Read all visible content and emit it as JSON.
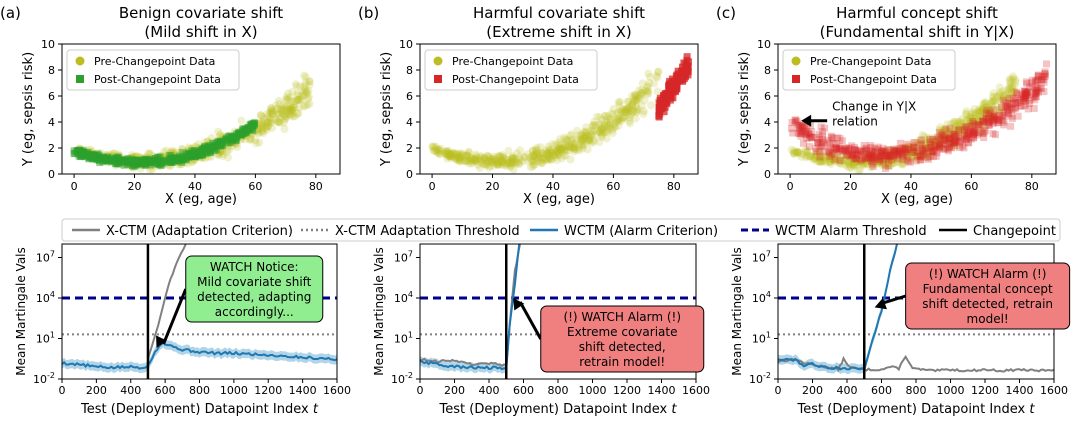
{
  "chart_data": [
    {
      "id": "a",
      "type": "scatter",
      "panel_label": "(a)",
      "title_line1": "Benign covariate shift",
      "title_line2": "(Mild shift in X)",
      "xlabel": "X (eg, age)",
      "ylabel": "Y (eg, sepsis risk)",
      "xlim": [
        -4,
        88
      ],
      "ylim": [
        0,
        10
      ],
      "xticks": [
        0,
        20,
        40,
        60,
        80
      ],
      "yticks": [
        0,
        2,
        4,
        6,
        8,
        10
      ],
      "legend_position": "upper-left",
      "series": [
        {
          "name": "Pre-Changepoint Data",
          "marker": "circle",
          "color": "#bcbd22",
          "x_range": [
            0,
            78
          ],
          "trend": "u-shape",
          "y_at_0": 2.0,
          "y_min": 1.0,
          "x_at_min": 22,
          "y_at_80": 6.3
        },
        {
          "name": "Post-Changepoint Data",
          "marker": "square",
          "color": "#2ca02c",
          "x_range": [
            0,
            60
          ],
          "trend": "u-shape",
          "y_at_0": 1.8,
          "y_min": 0.9,
          "x_at_min": 22,
          "y_at_60": 3.8
        }
      ],
      "annotation": null
    },
    {
      "id": "b",
      "type": "scatter",
      "panel_label": "(b)",
      "title_line1": "Harmful covariate shift",
      "title_line2": "(Extreme shift in X)",
      "xlabel": "X (eg, age)",
      "ylabel": "Y (eg, sepsis risk)",
      "xlim": [
        -4,
        88
      ],
      "ylim": [
        0,
        10
      ],
      "xticks": [
        0,
        20,
        40,
        60,
        80
      ],
      "yticks": [
        0,
        2,
        4,
        6,
        8,
        10
      ],
      "legend_position": "upper-left",
      "series": [
        {
          "name": "Pre-Changepoint Data",
          "marker": "circle",
          "color": "#bcbd22",
          "x_range": [
            0,
            75
          ],
          "trend": "u-shape",
          "y_at_0": 1.9,
          "y_min": 1.0,
          "x_at_min": 22,
          "y_at_75": 7.0
        },
        {
          "name": "Post-Changepoint Data",
          "marker": "square",
          "color": "#d62728",
          "x_range": [
            75,
            85
          ],
          "trend": "steep",
          "y_at_75": 5.0,
          "y_at_85": 8.5
        }
      ],
      "annotation": null
    },
    {
      "id": "c",
      "type": "scatter",
      "panel_label": "(c)",
      "title_line1": "Harmful concept shift",
      "title_line2": "(Fundamental shift in Y|X)",
      "xlabel": "X (eg, age)",
      "ylabel": "Y (eg, sepsis risk)",
      "xlim": [
        -4,
        88
      ],
      "ylim": [
        0,
        10
      ],
      "xticks": [
        0,
        20,
        40,
        60,
        80
      ],
      "yticks": [
        0,
        2,
        4,
        6,
        8,
        10
      ],
      "legend_position": "upper-left",
      "series": [
        {
          "name": "Pre-Changepoint Data",
          "marker": "circle",
          "color": "#bcbd22",
          "x_range": [
            0,
            75
          ],
          "trend": "u-shape",
          "y_at_0": 1.9,
          "y_min": 1.0,
          "x_at_min": 22,
          "y_at_75": 7.0
        },
        {
          "name": "Post-Changepoint Data",
          "marker": "square",
          "color": "#d62728",
          "x_range": [
            0,
            85
          ],
          "trend": "u-shape-high-left",
          "y_at_0": 4.0,
          "y_min": 1.4,
          "x_at_min": 30,
          "y_at_80": 6.5
        }
      ],
      "annotation": {
        "line1": "Change in Y|X",
        "line2": "relation",
        "arrow_to": [
          3,
          4.1
        ]
      }
    },
    {
      "id": "a-mart",
      "type": "line",
      "yscale": "log",
      "xlabel": "Test (Deployment) Datapoint Index",
      "xlabel_var": "t",
      "ylabel": "Mean Martingale Vals",
      "xlim": [
        0,
        1600
      ],
      "ylim_log10": [
        -2,
        8
      ],
      "xticks": [
        0,
        200,
        400,
        600,
        800,
        1000,
        1200,
        1400,
        1600
      ],
      "ytick_exponents": [
        -2,
        1,
        4,
        7
      ],
      "changepoint": 500,
      "wctm_alarm_threshold": 10000,
      "xctm_adaptation_threshold": 20,
      "series": [
        {
          "name": "X-CTM (Adaptation Criterion)",
          "color": "#808080",
          "points": [
            [
              500,
              0.3
            ],
            [
              560,
              100
            ],
            [
              620,
              100000
            ],
            [
              680,
              10000000
            ],
            [
              720,
              100000000
            ]
          ]
        },
        {
          "name": "WCTM (Alarm Criterion)",
          "color": "#1f77b4",
          "points": [
            [
              0,
              0.15
            ],
            [
              100,
              0.12
            ],
            [
              200,
              0.08
            ],
            [
              300,
              0.07
            ],
            [
              400,
              0.08
            ],
            [
              450,
              0.07
            ],
            [
              500,
              0.09
            ],
            [
              540,
              1
            ],
            [
              580,
              5
            ],
            [
              600,
              4
            ],
            [
              700,
              1.5
            ],
            [
              800,
              1.0
            ],
            [
              900,
              0.8
            ],
            [
              1000,
              0.8
            ],
            [
              1100,
              0.7
            ],
            [
              1200,
              0.6
            ],
            [
              1300,
              0.5
            ],
            [
              1400,
              0.4
            ],
            [
              1500,
              0.35
            ],
            [
              1600,
              0.3
            ]
          ]
        }
      ],
      "callout": {
        "lines": [
          "WATCH Notice:",
          "Mild covariate shift",
          "detected, adapting",
          "accordingly..."
        ],
        "color": "#90ee90",
        "arrow_to": [
          550,
          2
        ]
      }
    },
    {
      "id": "b-mart",
      "type": "line",
      "yscale": "log",
      "xlabel": "Test (Deployment) Datapoint Index",
      "xlabel_var": "t",
      "ylabel": "Mean Martingale Vals",
      "xlim": [
        0,
        1600
      ],
      "ylim_log10": [
        -2,
        8
      ],
      "xticks": [
        0,
        200,
        400,
        600,
        800,
        1000,
        1200,
        1400,
        1600
      ],
      "ytick_exponents": [
        -2,
        1,
        4,
        7
      ],
      "changepoint": 500,
      "wctm_alarm_threshold": 10000,
      "xctm_adaptation_threshold": 20,
      "series": [
        {
          "name": "X-CTM (Adaptation Criterion)",
          "color": "#808080",
          "points": [
            [
              0,
              0.3
            ],
            [
              100,
              0.2
            ],
            [
              200,
              0.25
            ],
            [
              300,
              0.12
            ],
            [
              400,
              0.15
            ],
            [
              500,
              0.1
            ],
            [
              520,
              100
            ],
            [
              550,
              1000000
            ],
            [
              580,
              100000000
            ]
          ]
        },
        {
          "name": "WCTM (Alarm Criterion)",
          "color": "#1f77b4",
          "points": [
            [
              0,
              0.2
            ],
            [
              100,
              0.12
            ],
            [
              200,
              0.08
            ],
            [
              300,
              0.07
            ],
            [
              400,
              0.07
            ],
            [
              500,
              0.06
            ],
            [
              520,
              100
            ],
            [
              550,
              100000
            ],
            [
              575,
              100000000
            ]
          ]
        }
      ],
      "callout": {
        "lines": [
          "(!) WATCH Alarm (!)",
          "Extreme covariate",
          "shift detected,",
          "retrain model!"
        ],
        "color": "#f08080",
        "arrow_to": [
          540,
          10000
        ]
      }
    },
    {
      "id": "c-mart",
      "type": "line",
      "yscale": "log",
      "xlabel": "Test (Deployment) Datapoint Index",
      "xlabel_var": "t",
      "ylabel": "Mean Martingale Vals",
      "xlim": [
        0,
        1600
      ],
      "ylim_log10": [
        -2,
        8
      ],
      "xticks": [
        0,
        200,
        400,
        600,
        800,
        1000,
        1200,
        1400,
        1600
      ],
      "ytick_exponents": [
        -2,
        1,
        4,
        7
      ],
      "changepoint": 500,
      "wctm_alarm_threshold": 10000,
      "xctm_adaptation_threshold": 20,
      "series": [
        {
          "name": "X-CTM (Adaptation Criterion)",
          "color": "#808080",
          "points": [
            [
              0,
              0.2
            ],
            [
              100,
              0.3
            ],
            [
              150,
              0.15
            ],
            [
              300,
              0.07
            ],
            [
              350,
              0.05
            ],
            [
              380,
              0.3
            ],
            [
              420,
              0.07
            ],
            [
              500,
              0.05
            ],
            [
              600,
              0.05
            ],
            [
              650,
              0.08
            ],
            [
              700,
              0.06
            ],
            [
              740,
              0.5
            ],
            [
              780,
              0.06
            ],
            [
              900,
              0.04
            ],
            [
              1000,
              0.05
            ],
            [
              1100,
              0.04
            ],
            [
              1200,
              0.05
            ],
            [
              1300,
              0.04
            ],
            [
              1400,
              0.05
            ],
            [
              1500,
              0.04
            ],
            [
              1600,
              0.05
            ]
          ]
        },
        {
          "name": "WCTM (Alarm Criterion)",
          "color": "#1f77b4",
          "points": [
            [
              0,
              0.3
            ],
            [
              100,
              0.25
            ],
            [
              150,
              0.1
            ],
            [
              200,
              0.12
            ],
            [
              300,
              0.07
            ],
            [
              400,
              0.06
            ],
            [
              500,
              0.05
            ],
            [
              550,
              10
            ],
            [
              600,
              1000
            ],
            [
              650,
              1000000
            ],
            [
              690,
              100000000
            ]
          ]
        }
      ],
      "callout": {
        "lines": [
          "(!) WATCH Alarm (!)",
          "Fundamental concept",
          "shift detected, retrain",
          "model!"
        ],
        "color": "#f08080",
        "arrow_to": [
          560,
          2000
        ]
      }
    }
  ],
  "legend": {
    "xctm_line": "X-CTM (Adaptation Criterion)",
    "xctm_threshold": "X-CTM Adaptation Threshold",
    "wctm_line": "WCTM (Alarm Criterion)",
    "wctm_threshold": "WCTM Alarm Threshold",
    "changepoint": "Changepoint"
  },
  "colors": {
    "xctm": "#808080",
    "wctm": "#1f77b4",
    "wctm_band": "#9ecae1",
    "alarm_threshold": "#00008b",
    "changepoint": "#000000",
    "pre": "#bcbd22",
    "post_mild": "#2ca02c",
    "post_harmful": "#d62728"
  }
}
